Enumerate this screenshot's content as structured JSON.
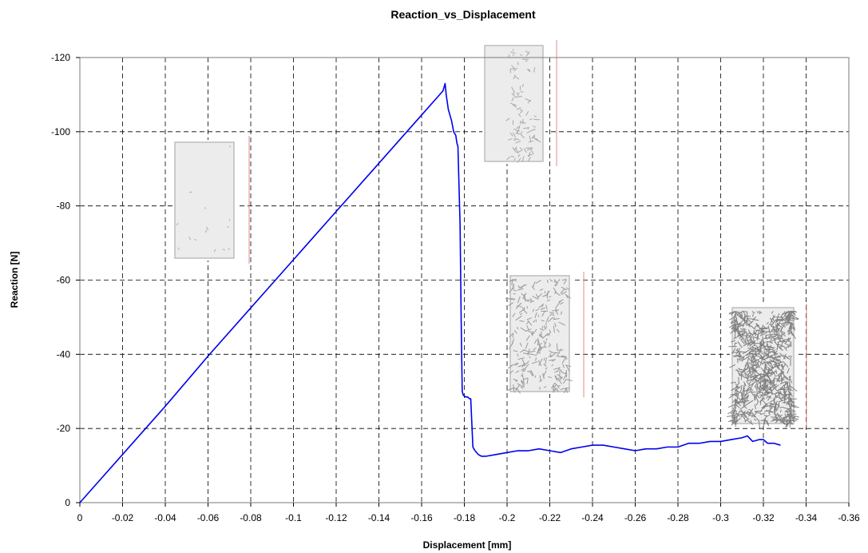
{
  "chart_data": {
    "type": "line",
    "title": "Reaction_vs_Displacement",
    "xlabel": "Displacement [mm]",
    "ylabel": "Reaction [N]",
    "xlim": [
      0,
      -0.36
    ],
    "ylim": [
      0,
      -120
    ],
    "x_ticks": [
      "0",
      "-0.02",
      "-0.04",
      "-0.06",
      "-0.08",
      "-0.1",
      "-0.12",
      "-0.14",
      "-0.16",
      "-0.18",
      "-0.2",
      "-0.22",
      "-0.24",
      "-0.26",
      "-0.28",
      "-0.3",
      "-0.32",
      "-0.34",
      "-0.36"
    ],
    "y_ticks": [
      "0",
      "-20",
      "-40",
      "-60",
      "-80",
      "-100",
      "-120"
    ],
    "grid": true,
    "legend": "none",
    "series": [
      {
        "color": "#0000ee",
        "x": [
          0,
          -0.02,
          -0.04,
          -0.06,
          -0.08,
          -0.1,
          -0.12,
          -0.14,
          -0.16,
          -0.17,
          -0.171,
          -0.1715,
          -0.1725,
          -0.174,
          -0.175,
          -0.176,
          -0.1765,
          -0.177,
          -0.178,
          -0.1785,
          -0.179,
          -0.1795,
          -0.1805,
          -0.1815,
          -0.1825,
          -0.183,
          -0.184,
          -0.1845,
          -0.185,
          -0.1865,
          -0.188,
          -0.19,
          -0.195,
          -0.2,
          -0.205,
          -0.21,
          -0.215,
          -0.22,
          -0.225,
          -0.23,
          -0.235,
          -0.24,
          -0.245,
          -0.25,
          -0.255,
          -0.26,
          -0.265,
          -0.27,
          -0.275,
          -0.28,
          -0.285,
          -0.29,
          -0.295,
          -0.3,
          -0.305,
          -0.31,
          -0.3125,
          -0.315,
          -0.318,
          -0.32,
          -0.322,
          -0.325,
          -0.328
        ],
        "y": [
          0,
          -13,
          -26,
          -39.5,
          -52.5,
          -65.5,
          -78.5,
          -91.5,
          -104.5,
          -111,
          -113,
          -110,
          -106,
          -103,
          -100,
          -99,
          -97,
          -96,
          -75,
          -50,
          -30,
          -29,
          -28.5,
          -28.5,
          -28,
          -28,
          -15,
          -14.5,
          -14,
          -13,
          -12.5,
          -12.5,
          -13,
          -13.5,
          -14,
          -14,
          -14.5,
          -14,
          -13.5,
          -14.5,
          -15,
          -15.5,
          -15.5,
          -15,
          -14.5,
          -14,
          -14.5,
          -14.5,
          -15,
          -15,
          -16,
          -16,
          -16.5,
          -16.5,
          -17,
          -17.5,
          -18,
          -16.5,
          -17,
          -17,
          -16,
          -16,
          -15.5
        ]
      }
    ]
  }
}
